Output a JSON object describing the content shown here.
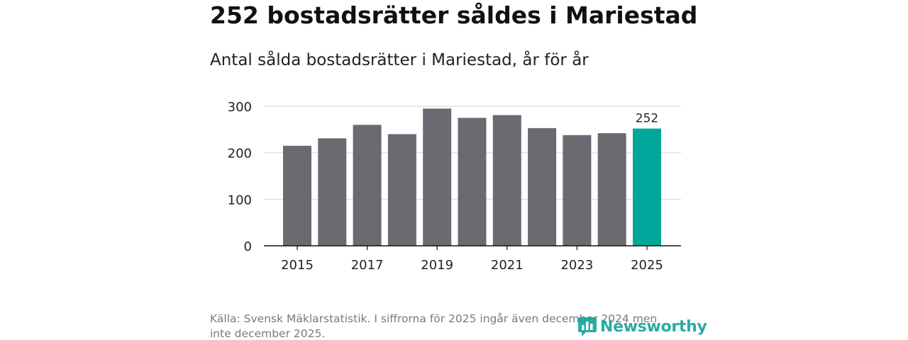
{
  "header": {
    "title": "252 bostadsrätter såldes i Mariestad",
    "subtitle": "Antal sålda bostadsrätter i Mariestad, år för år"
  },
  "chart_data": {
    "type": "bar",
    "title": "Antal sålda bostadsrätter i Mariestad, år för år",
    "xlabel": "",
    "ylabel": "",
    "categories": [
      "2015",
      "2016",
      "2017",
      "2018",
      "2019",
      "2020",
      "2021",
      "2022",
      "2023",
      "2024",
      "2025"
    ],
    "values": [
      215,
      231,
      260,
      240,
      295,
      275,
      281,
      253,
      238,
      242,
      252
    ],
    "highlight_index": 10,
    "data_labels": [
      {
        "index": 10,
        "text": "252"
      }
    ],
    "xtick_labels": [
      "2015",
      "2017",
      "2019",
      "2021",
      "2023",
      "2025"
    ],
    "ytick_labels": [
      "0",
      "100",
      "200",
      "300"
    ],
    "yticks": [
      0,
      100,
      200,
      300
    ],
    "ylim": [
      0,
      300
    ],
    "grid": true,
    "colors": {
      "bar": "#6b6a70",
      "highlight": "#00a699",
      "grid": "#d9d9d9",
      "axis": "#111111"
    }
  },
  "footer": {
    "source": "Källa: Svensk Mäklarstatistik. I siffrorna för 2025 ingår även december 2024 men inte december 2025.",
    "logo_text": "Newsworthy",
    "logo_icon": "bar-chart-speech-bubble-icon",
    "logo_color": "#11a49b"
  }
}
